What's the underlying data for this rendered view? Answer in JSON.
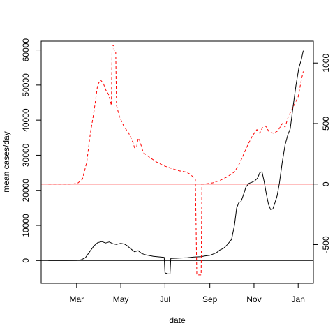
{
  "chart_data": {
    "type": "line",
    "title": "",
    "xlabel": "date",
    "ylabel": "mean cases/day",
    "y2label": "",
    "xlim": [
      "2020-01-12",
      "2021-01-22"
    ],
    "ylim": [
      -6500,
      62500
    ],
    "y2lim": [
      -820,
      1180
    ],
    "x_ticks": [
      {
        "date": "2020-03-01",
        "label": "Mar"
      },
      {
        "date": "2020-05-01",
        "label": "May"
      },
      {
        "date": "2020-07-01",
        "label": "Jul"
      },
      {
        "date": "2020-09-01",
        "label": "Sep"
      },
      {
        "date": "2020-11-01",
        "label": "Nov"
      },
      {
        "date": "2021-01-01",
        "label": "Jan"
      }
    ],
    "y_ticks": [
      0,
      10000,
      20000,
      30000,
      40000,
      50000,
      60000
    ],
    "y2_ticks": [
      -500,
      0,
      500,
      1000
    ],
    "hlines": [
      {
        "axis": "left",
        "value": 0,
        "color": "#000000"
      },
      {
        "axis": "right",
        "value": 0,
        "color": "#ff0000"
      }
    ],
    "grid": false,
    "legend": "none",
    "series": [
      {
        "axis": "left",
        "color": "#000000",
        "dash": "solid",
        "points": [
          [
            "2020-01-22",
            0
          ],
          [
            "2020-02-15",
            0
          ],
          [
            "2020-03-01",
            50
          ],
          [
            "2020-03-07",
            200
          ],
          [
            "2020-03-13",
            800
          ],
          [
            "2020-03-19",
            2500
          ],
          [
            "2020-03-25",
            4200
          ],
          [
            "2020-03-30",
            5100
          ],
          [
            "2020-04-05",
            5400
          ],
          [
            "2020-04-10",
            5000
          ],
          [
            "2020-04-15",
            5300
          ],
          [
            "2020-04-20",
            4800
          ],
          [
            "2020-04-25",
            4600
          ],
          [
            "2020-05-01",
            4900
          ],
          [
            "2020-05-06",
            4700
          ],
          [
            "2020-05-10",
            4200
          ],
          [
            "2020-05-15",
            3300
          ],
          [
            "2020-05-20",
            2500
          ],
          [
            "2020-05-25",
            2800
          ],
          [
            "2020-05-30",
            2000
          ],
          [
            "2020-06-05",
            1600
          ],
          [
            "2020-06-15",
            1200
          ],
          [
            "2020-06-25",
            1000
          ],
          [
            "2020-06-30",
            900
          ],
          [
            "2020-07-01",
            -3500
          ],
          [
            "2020-07-05",
            -3800
          ],
          [
            "2020-07-08",
            -3800
          ],
          [
            "2020-07-09",
            600
          ],
          [
            "2020-07-20",
            700
          ],
          [
            "2020-08-01",
            800
          ],
          [
            "2020-08-10",
            1000
          ],
          [
            "2020-08-20",
            1100
          ],
          [
            "2020-08-25",
            1300
          ],
          [
            "2020-09-01",
            1500
          ],
          [
            "2020-09-10",
            2200
          ],
          [
            "2020-09-15",
            3000
          ],
          [
            "2020-09-20",
            3500
          ],
          [
            "2020-09-25",
            4500
          ],
          [
            "2020-10-01",
            6000
          ],
          [
            "2020-10-05",
            10000
          ],
          [
            "2020-10-08",
            15000
          ],
          [
            "2020-10-11",
            16500
          ],
          [
            "2020-10-14",
            16800
          ],
          [
            "2020-10-17",
            18500
          ],
          [
            "2020-10-21",
            21000
          ],
          [
            "2020-10-25",
            22000
          ],
          [
            "2020-10-29",
            22300
          ],
          [
            "2020-11-02",
            22700
          ],
          [
            "2020-11-06",
            23500
          ],
          [
            "2020-11-09",
            25000
          ],
          [
            "2020-11-12",
            25300
          ],
          [
            "2020-11-15",
            22500
          ],
          [
            "2020-11-18",
            19000
          ],
          [
            "2020-11-21",
            16000
          ],
          [
            "2020-11-24",
            14500
          ],
          [
            "2020-11-27",
            14700
          ],
          [
            "2020-11-30",
            16500
          ],
          [
            "2020-12-03",
            18500
          ],
          [
            "2020-12-06",
            22000
          ],
          [
            "2020-12-10",
            28000
          ],
          [
            "2020-12-14",
            33000
          ],
          [
            "2020-12-18",
            36000
          ],
          [
            "2020-12-21",
            37500
          ],
          [
            "2020-12-25",
            44000
          ],
          [
            "2020-12-29",
            50000
          ],
          [
            "2021-01-02",
            55000
          ],
          [
            "2021-01-05",
            57000
          ],
          [
            "2021-01-08",
            59800
          ]
        ]
      },
      {
        "axis": "right",
        "color": "#ff0000",
        "dash": "dashed",
        "points": [
          [
            "2020-01-22",
            0
          ],
          [
            "2020-02-25",
            0
          ],
          [
            "2020-03-03",
            10
          ],
          [
            "2020-03-09",
            40
          ],
          [
            "2020-03-15",
            180
          ],
          [
            "2020-03-20",
            420
          ],
          [
            "2020-03-25",
            600
          ],
          [
            "2020-03-30",
            820
          ],
          [
            "2020-04-03",
            860
          ],
          [
            "2020-04-07",
            830
          ],
          [
            "2020-04-10",
            780
          ],
          [
            "2020-04-14",
            740
          ],
          [
            "2020-04-16",
            700
          ],
          [
            "2020-04-18",
            650
          ],
          [
            "2020-04-19",
            1150
          ],
          [
            "2020-04-21",
            1140
          ],
          [
            "2020-04-22",
            1100
          ],
          [
            "2020-04-24",
            1100
          ],
          [
            "2020-04-25",
            650
          ],
          [
            "2020-04-29",
            560
          ],
          [
            "2020-05-05",
            480
          ],
          [
            "2020-05-12",
            420
          ],
          [
            "2020-05-18",
            340
          ],
          [
            "2020-05-20",
            300
          ],
          [
            "2020-05-23",
            310
          ],
          [
            "2020-05-25",
            380
          ],
          [
            "2020-05-27",
            360
          ],
          [
            "2020-06-01",
            260
          ],
          [
            "2020-06-10",
            220
          ],
          [
            "2020-06-20",
            180
          ],
          [
            "2020-06-30",
            150
          ],
          [
            "2020-07-10",
            130
          ],
          [
            "2020-07-20",
            110
          ],
          [
            "2020-07-30",
            100
          ],
          [
            "2020-08-05",
            80
          ],
          [
            "2020-08-12",
            40
          ],
          [
            "2020-08-14",
            -750
          ],
          [
            "2020-08-20",
            -750
          ],
          [
            "2020-08-21",
            0
          ],
          [
            "2020-08-25",
            0
          ],
          [
            "2020-09-05",
            10
          ],
          [
            "2020-09-15",
            30
          ],
          [
            "2020-09-25",
            60
          ],
          [
            "2020-10-05",
            100
          ],
          [
            "2020-10-12",
            170
          ],
          [
            "2020-10-18",
            250
          ],
          [
            "2020-10-24",
            330
          ],
          [
            "2020-10-30",
            400
          ],
          [
            "2020-11-05",
            450
          ],
          [
            "2020-11-09",
            420
          ],
          [
            "2020-11-13",
            470
          ],
          [
            "2020-11-17",
            480
          ],
          [
            "2020-11-22",
            430
          ],
          [
            "2020-11-28",
            420
          ],
          [
            "2020-12-04",
            440
          ],
          [
            "2020-12-10",
            500
          ],
          [
            "2020-12-14",
            470
          ],
          [
            "2020-12-18",
            550
          ],
          [
            "2020-12-22",
            600
          ],
          [
            "2020-12-27",
            660
          ],
          [
            "2021-01-01",
            720
          ],
          [
            "2021-01-05",
            850
          ],
          [
            "2021-01-08",
            930
          ]
        ]
      }
    ]
  }
}
